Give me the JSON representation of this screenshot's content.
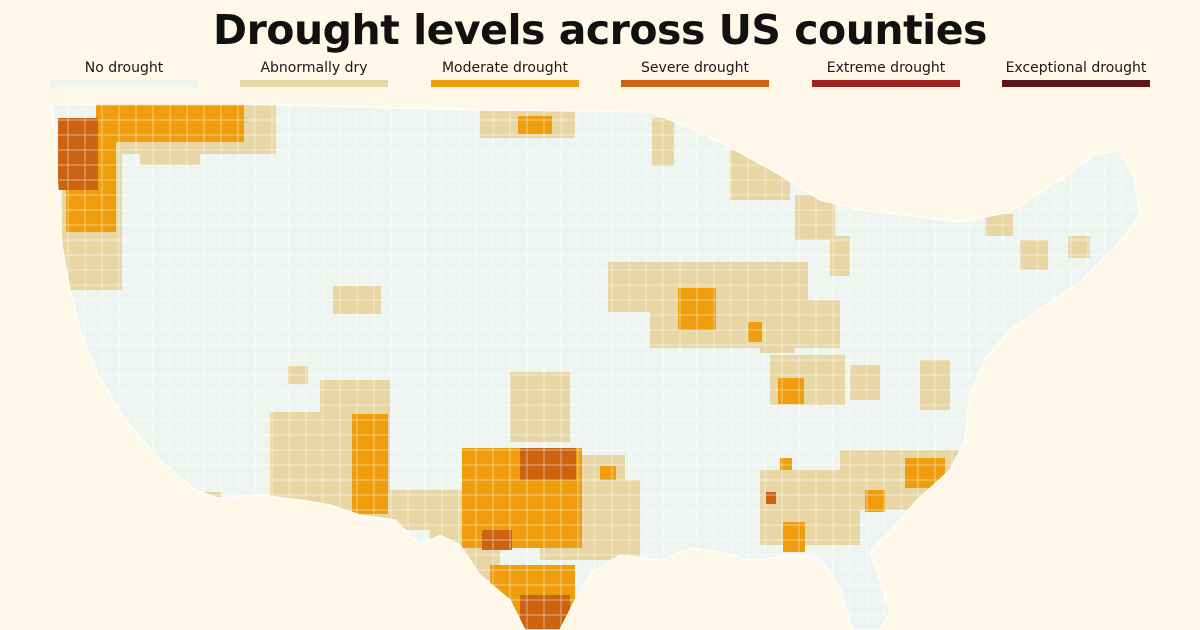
{
  "title": "Drought levels across US counties",
  "legend": [
    {
      "label": "No drought",
      "color": "#eef5f1"
    },
    {
      "label": "Abnormally dry",
      "color": "#e8d6a4"
    },
    {
      "label": "Moderate drought",
      "color": "#ee9e0c"
    },
    {
      "label": "Severe drought",
      "color": "#cc6310"
    },
    {
      "label": "Extreme drought",
      "color": "#a32020"
    },
    {
      "label": "Exceptional drought",
      "color": "#5b1818"
    }
  ],
  "colors": {
    "background": "#fff7e8",
    "county_border": "#ffffff"
  }
}
